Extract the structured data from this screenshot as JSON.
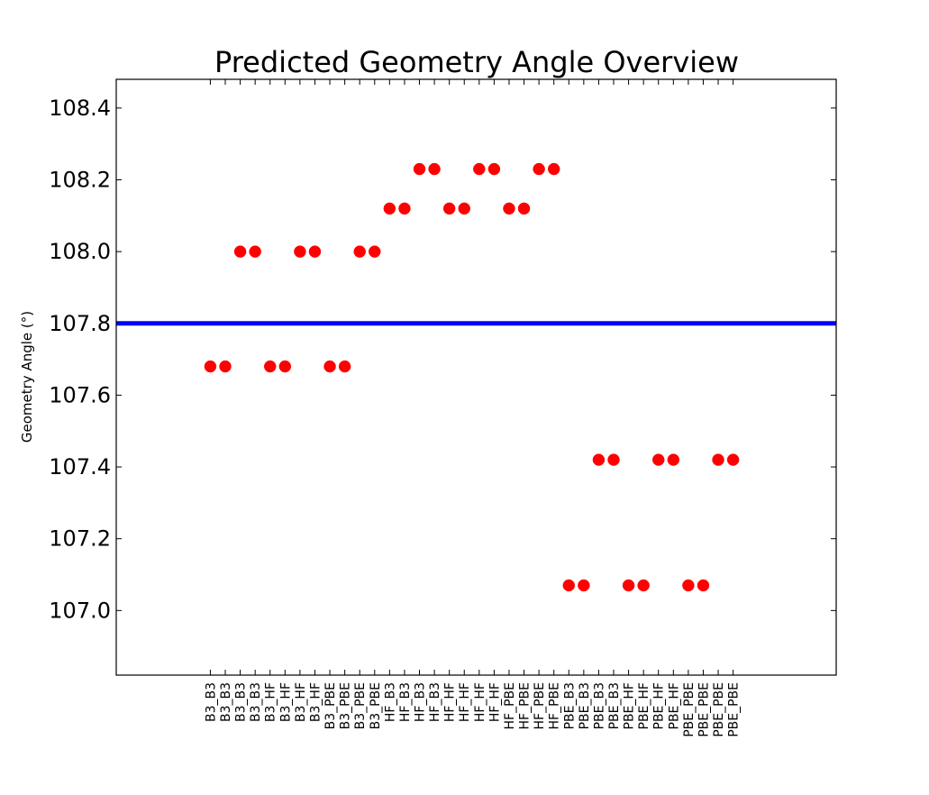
{
  "chart_data": {
    "type": "scatter",
    "title": "Predicted Geometry Angle Overview",
    "xlabel": "",
    "ylabel": "Geometry Angle (°)",
    "ylim": [
      106.82,
      108.48
    ],
    "yticks": [
      107.0,
      107.2,
      107.4,
      107.6,
      107.8,
      108.0,
      108.2,
      108.4
    ],
    "ytick_labels": [
      "107.0",
      "107.2",
      "107.4",
      "107.6",
      "107.8",
      "108.0",
      "108.2",
      "108.4"
    ],
    "categories": [
      "B3_B3",
      "B3_B3",
      "B3_B3",
      "B3_B3",
      "B3_HF",
      "B3_HF",
      "B3_HF",
      "B3_HF",
      "B3_PBE",
      "B3_PBE",
      "B3_PBE",
      "B3_PBE",
      "HF_B3",
      "HF_B3",
      "HF_B3",
      "HF_B3",
      "HF_HF",
      "HF_HF",
      "HF_HF",
      "HF_HF",
      "HF_PBE",
      "HF_PBE",
      "HF_PBE",
      "HF_PBE",
      "PBE_B3",
      "PBE_B3",
      "PBE_B3",
      "PBE_B3",
      "PBE_HF",
      "PBE_HF",
      "PBE_HF",
      "PBE_HF",
      "PBE_PBE",
      "PBE_PBE",
      "PBE_PBE",
      "PBE_PBE"
    ],
    "series": [
      {
        "color": "#ff0000",
        "values": [
          107.68,
          107.68,
          108.0,
          108.0,
          107.68,
          107.68,
          108.0,
          108.0,
          107.68,
          107.68,
          108.0,
          108.0,
          108.12,
          108.12,
          108.23,
          108.23,
          108.12,
          108.12,
          108.23,
          108.23,
          108.12,
          108.12,
          108.23,
          108.23,
          107.07,
          107.07,
          107.42,
          107.42,
          107.07,
          107.07,
          107.42,
          107.42,
          107.07,
          107.07,
          107.42,
          107.42
        ]
      }
    ],
    "reference_line": {
      "value": 107.8,
      "color": "#0000ff"
    },
    "grid": false,
    "legend": "none"
  }
}
